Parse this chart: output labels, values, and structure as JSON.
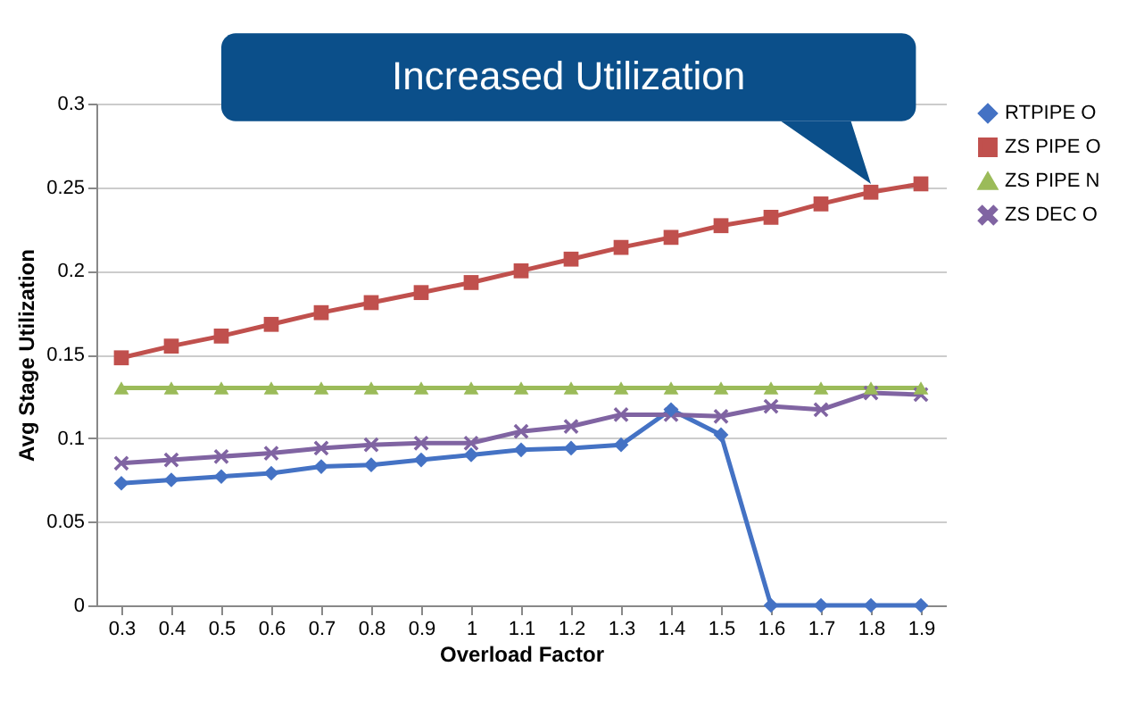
{
  "chart_data": {
    "type": "line",
    "xlabel": "Overload Factor",
    "ylabel": "Avg Stage Utilization",
    "categories": [
      "0.3",
      "0.4",
      "0.5",
      "0.6",
      "0.7",
      "0.8",
      "0.9",
      "1",
      "1.1",
      "1.2",
      "1.3",
      "1.4",
      "1.5",
      "1.6",
      "1.7",
      "1.8",
      "1.9"
    ],
    "series": [
      {
        "name": "RTPIPE O",
        "color": "#4472c4",
        "marker": "diamond",
        "values": [
          0.073,
          0.075,
          0.077,
          0.079,
          0.083,
          0.084,
          0.087,
          0.09,
          0.093,
          0.094,
          0.096,
          0.117,
          0.102,
          0,
          0,
          0,
          0
        ]
      },
      {
        "name": "ZS PIPE O",
        "color": "#c0504d",
        "marker": "square",
        "values": [
          0.148,
          0.155,
          0.161,
          0.168,
          0.175,
          0.181,
          0.187,
          0.193,
          0.2,
          0.207,
          0.214,
          0.22,
          0.227,
          0.232,
          0.24,
          0.247,
          0.252
        ]
      },
      {
        "name": "ZS PIPE N",
        "color": "#9bbb59",
        "marker": "triangle",
        "values": [
          0.13,
          0.13,
          0.13,
          0.13,
          0.13,
          0.13,
          0.13,
          0.13,
          0.13,
          0.13,
          0.13,
          0.13,
          0.13,
          0.13,
          0.13,
          0.13,
          0.13
        ]
      },
      {
        "name": "ZS DEC O",
        "color": "#8064a2",
        "marker": "cross",
        "values": [
          0.085,
          0.087,
          0.089,
          0.091,
          0.094,
          0.096,
          0.097,
          0.097,
          0.104,
          0.107,
          0.114,
          0.114,
          0.113,
          0.119,
          0.117,
          0.127,
          0.126
        ]
      }
    ],
    "ylim": [
      0,
      0.3
    ],
    "yticks": [
      0,
      0.05,
      0.1,
      0.15,
      0.2,
      0.25,
      0.3
    ],
    "grid": "y",
    "legend": "right",
    "line_style": "solid",
    "annotations": [
      "Increased Utilization"
    ]
  }
}
